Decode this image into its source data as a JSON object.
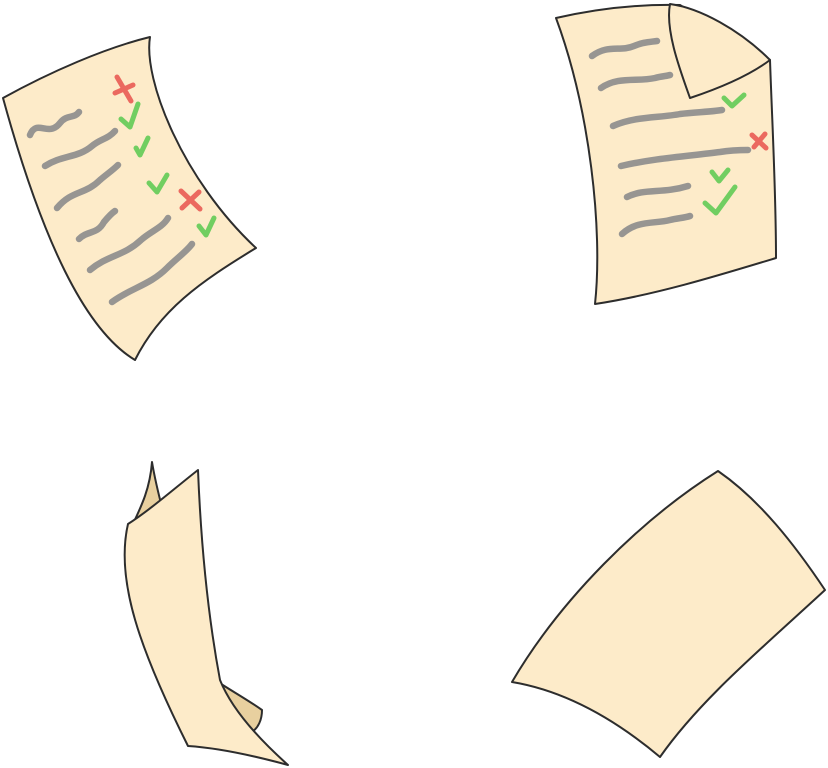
{
  "colors": {
    "background": "#ffffff",
    "paper": "#fdebc9",
    "paper_back": "#e8d09f",
    "outline": "#2d2d2d",
    "scribble": "#8c8c8c",
    "check": "#58c94f",
    "cross": "#e8524c"
  },
  "illustrations": [
    {
      "name": "paper-checklist-left",
      "marks": [
        "cross",
        "check",
        "check",
        "check",
        "cross",
        "check"
      ]
    },
    {
      "name": "paper-checklist-right-folded-corner",
      "marks": [
        "check",
        "cross",
        "check",
        "check"
      ]
    },
    {
      "name": "paper-blank-curled",
      "marks": []
    },
    {
      "name": "paper-blank-flat",
      "marks": []
    }
  ]
}
